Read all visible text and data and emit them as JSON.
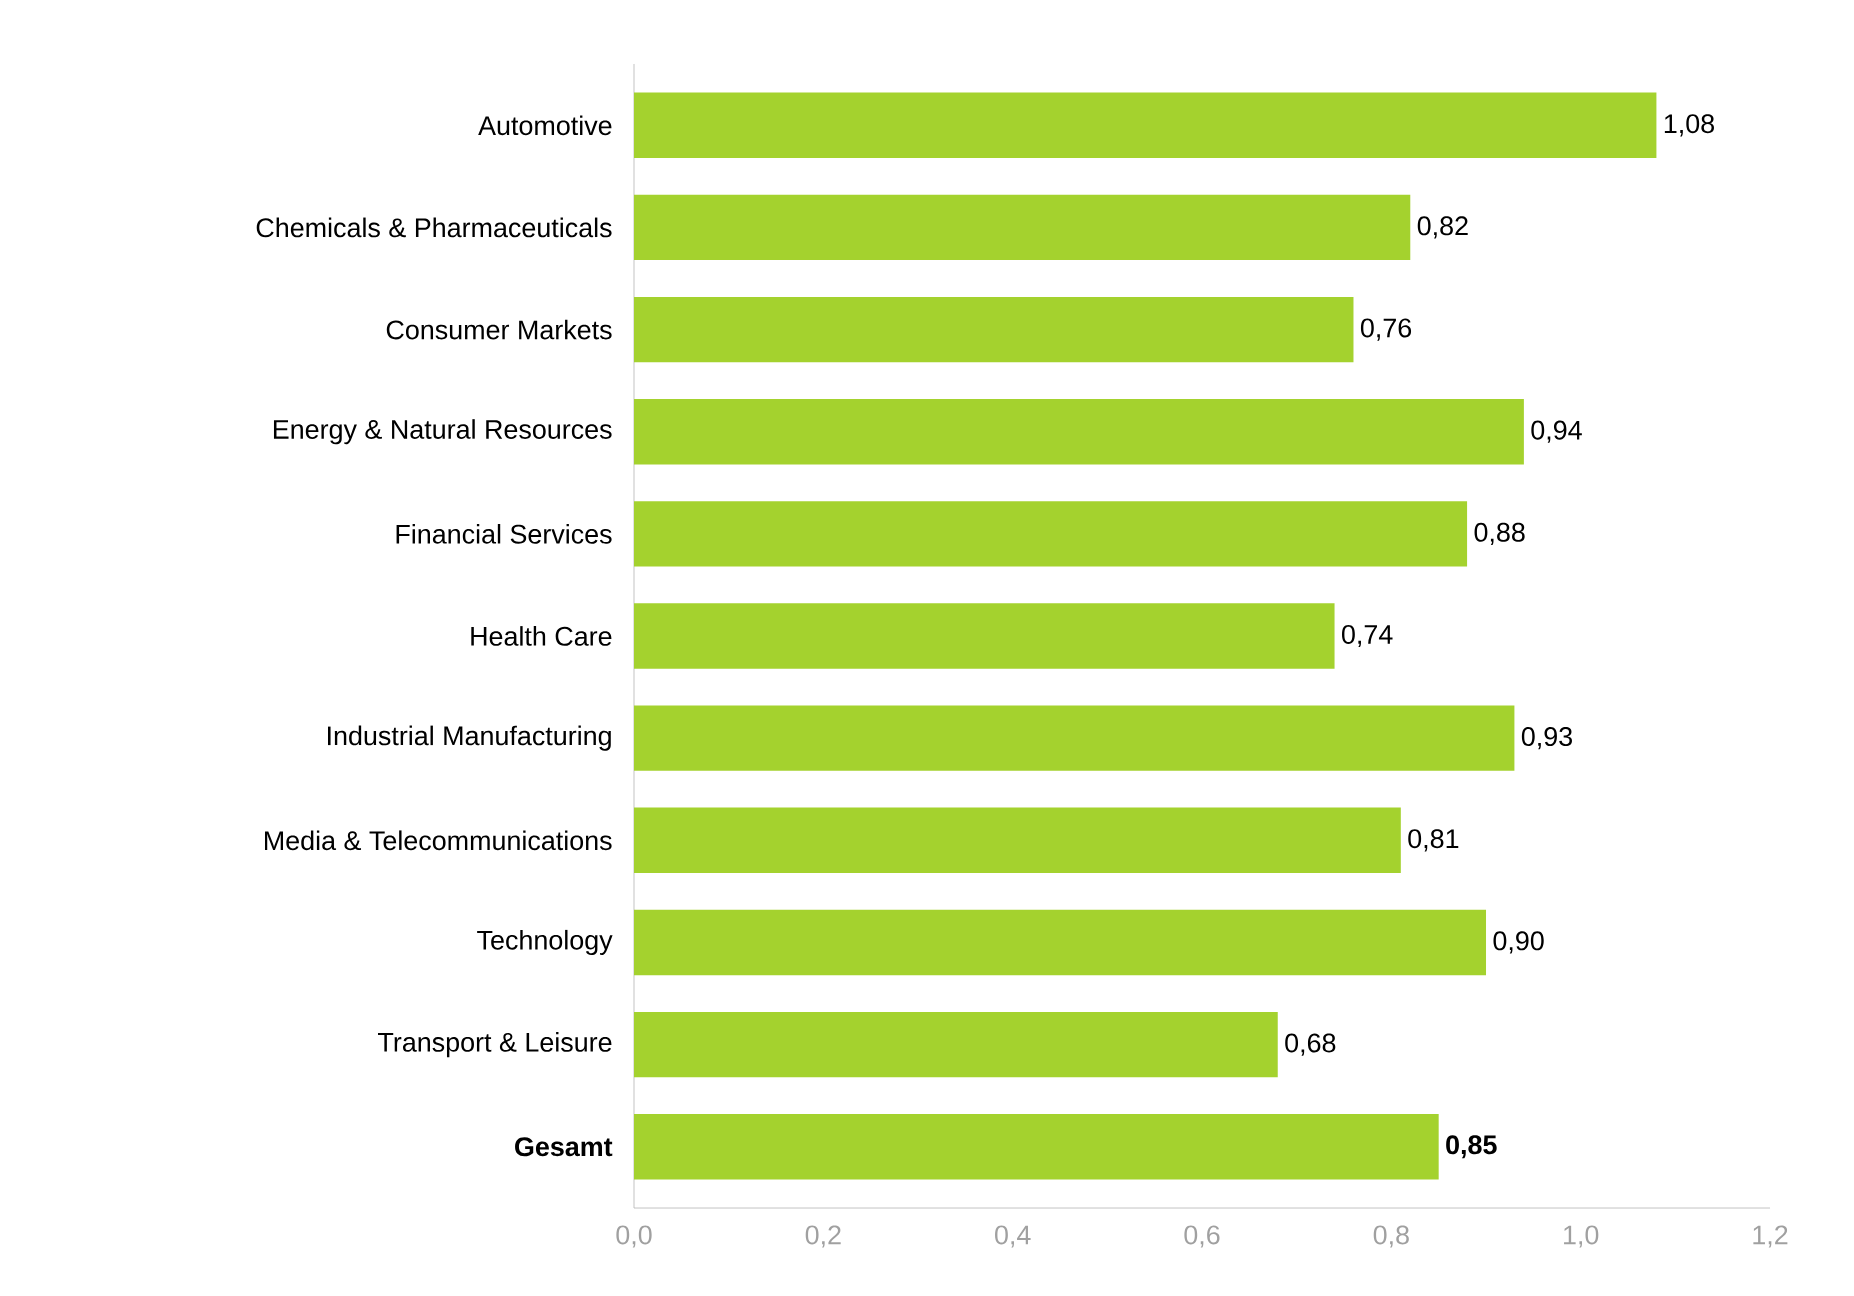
{
  "chart_data": {
    "type": "bar",
    "orientation": "horizontal",
    "categories": [
      "Automotive",
      "Chemicals & Pharmaceuticals",
      "Consumer Markets",
      "Energy & Natural Resources",
      "Financial Services",
      "Health Care",
      "Industrial Manufacturing",
      "Media & Telecommunications",
      "Technology",
      "Transport & Leisure",
      "**Gesamt**"
    ],
    "values": [
      1.08,
      0.82,
      0.76,
      0.94,
      0.88,
      0.74,
      0.93,
      0.81,
      0.9,
      0.68,
      0.85
    ],
    "value_labels": [
      "1,08",
      "0,82",
      "0,76",
      "0,94",
      "0,88",
      "0,74",
      "0,93",
      "0,81",
      "0,90",
      "0,68",
      "**0,85**"
    ],
    "color": "#a4d22e",
    "xlim": [
      0,
      1.2
    ],
    "xticks": [
      {
        "value": 0,
        "label": "0,0"
      },
      {
        "value": 0.2,
        "label": "0,2"
      },
      {
        "value": 0.4,
        "label": "0,4"
      },
      {
        "value": 0.6,
        "label": "0,6"
      },
      {
        "value": 0.8,
        "label": "0,8"
      },
      {
        "value": 1.0,
        "label": "1,0"
      },
      {
        "value": 1.2,
        "label": "1,2"
      }
    ],
    "grid": false
  }
}
